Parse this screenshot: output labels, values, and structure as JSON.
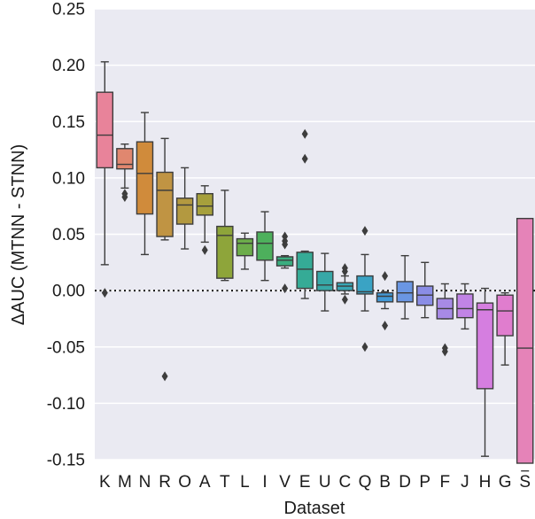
{
  "chart_data": {
    "type": "box",
    "xlabel": "Dataset",
    "ylabel": "ΔAUC (MTNN - STNN)",
    "ylim": [
      -0.15,
      0.25
    ],
    "yticks": [
      -0.15,
      -0.1,
      -0.05,
      0.0,
      0.05,
      0.1,
      0.15,
      0.2,
      0.25
    ],
    "ytick_labels": [
      "-0.15",
      "-0.10",
      "-0.05",
      "0.00",
      "0.05",
      "0.10",
      "0.15",
      "0.20",
      "0.25"
    ],
    "reference_line": 0.0,
    "background": "#eaeaf2",
    "gridline_color": "#ffffff",
    "boxes": [
      {
        "label": "K",
        "color": "#e8839a",
        "q1": 0.109,
        "median": 0.138,
        "q3": 0.176,
        "whisker_low": 0.023,
        "whisker_high": 0.203,
        "outliers": [
          -0.002
        ]
      },
      {
        "label": "M",
        "color": "#e0876f",
        "q1": 0.108,
        "median": 0.112,
        "q3": 0.126,
        "whisker_low": 0.091,
        "whisker_high": 0.13,
        "outliers": [
          0.086,
          0.083
        ]
      },
      {
        "label": "N",
        "color": "#d08b3b",
        "q1": 0.068,
        "median": 0.104,
        "q3": 0.132,
        "whisker_low": 0.032,
        "whisker_high": 0.158,
        "outliers": []
      },
      {
        "label": "R",
        "color": "#c09443",
        "q1": 0.048,
        "median": 0.089,
        "q3": 0.105,
        "whisker_low": 0.045,
        "whisker_high": 0.135,
        "outliers": [
          -0.076
        ]
      },
      {
        "label": "O",
        "color": "#b39940",
        "q1": 0.059,
        "median": 0.076,
        "q3": 0.082,
        "whisker_low": 0.037,
        "whisker_high": 0.109,
        "outliers": []
      },
      {
        "label": "A",
        "color": "#a6a03c",
        "q1": 0.067,
        "median": 0.075,
        "q3": 0.086,
        "whisker_low": 0.043,
        "whisker_high": 0.093,
        "outliers": [
          0.036
        ]
      },
      {
        "label": "T",
        "color": "#8ea53a",
        "q1": 0.011,
        "median": 0.049,
        "q3": 0.057,
        "whisker_low": 0.009,
        "whisker_high": 0.089,
        "outliers": []
      },
      {
        "label": "L",
        "color": "#6cad4a",
        "q1": 0.031,
        "median": 0.042,
        "q3": 0.046,
        "whisker_low": 0.019,
        "whisker_high": 0.051,
        "outliers": []
      },
      {
        "label": "I",
        "color": "#4db05c",
        "q1": 0.027,
        "median": 0.042,
        "q3": 0.052,
        "whisker_low": 0.009,
        "whisker_high": 0.07,
        "outliers": []
      },
      {
        "label": "V",
        "color": "#3aad7f",
        "q1": 0.022,
        "median": 0.027,
        "q3": 0.03,
        "whisker_low": 0.02,
        "whisker_high": 0.031,
        "outliers": [
          0.048,
          0.044,
          0.041,
          0.002
        ]
      },
      {
        "label": "E",
        "color": "#35ab96",
        "q1": 0.002,
        "median": 0.019,
        "q3": 0.034,
        "whisker_low": -0.007,
        "whisker_high": 0.035,
        "outliers": [
          0.139,
          0.117
        ]
      },
      {
        "label": "U",
        "color": "#37a8a7",
        "q1": 0.0,
        "median": 0.005,
        "q3": 0.017,
        "whisker_low": -0.018,
        "whisker_high": 0.033,
        "outliers": []
      },
      {
        "label": "C",
        "color": "#39a6b5",
        "q1": 0.0,
        "median": 0.004,
        "q3": 0.007,
        "whisker_low": -0.003,
        "whisker_high": 0.013,
        "outliers": [
          0.02,
          0.017,
          -0.008
        ]
      },
      {
        "label": "Q",
        "color": "#3aa3c4",
        "q1": -0.003,
        "median": -0.001,
        "q3": 0.013,
        "whisker_low": -0.018,
        "whisker_high": 0.032,
        "outliers": [
          0.053,
          -0.05
        ]
      },
      {
        "label": "B",
        "color": "#4299d6",
        "q1": -0.01,
        "median": -0.005,
        "q3": -0.002,
        "whisker_low": -0.016,
        "whisker_high": -0.001,
        "outliers": [
          0.013,
          -0.031
        ]
      },
      {
        "label": "D",
        "color": "#6a96e3",
        "q1": -0.01,
        "median": -0.002,
        "q3": 0.008,
        "whisker_low": -0.025,
        "whisker_high": 0.031,
        "outliers": []
      },
      {
        "label": "P",
        "color": "#8a8de6",
        "q1": -0.013,
        "median": -0.004,
        "q3": 0.004,
        "whisker_low": -0.024,
        "whisker_high": 0.025,
        "outliers": []
      },
      {
        "label": "F",
        "color": "#a78ae5",
        "q1": -0.025,
        "median": -0.016,
        "q3": -0.007,
        "whisker_low": -0.025,
        "whisker_high": 0.006,
        "outliers": [
          -0.051,
          -0.054
        ]
      },
      {
        "label": "J",
        "color": "#c184e6",
        "q1": -0.024,
        "median": -0.016,
        "q3": -0.003,
        "whisker_low": -0.034,
        "whisker_high": 0.006,
        "outliers": []
      },
      {
        "label": "H",
        "color": "#d57ee0",
        "q1": -0.087,
        "median": -0.017,
        "q3": -0.011,
        "whisker_low": -0.147,
        "whisker_high": 0.002,
        "outliers": []
      },
      {
        "label": "G",
        "color": "#e07dce",
        "q1": -0.04,
        "median": -0.018,
        "q3": -0.004,
        "whisker_low": -0.066,
        "whisker_high": -0.002,
        "outliers": []
      },
      {
        "label": "S",
        "color": "#e583b8",
        "q1": -0.16,
        "median": -0.051,
        "q3": 0.064,
        "whisker_low": -0.16,
        "whisker_high": 0.064,
        "outliers": []
      }
    ]
  }
}
